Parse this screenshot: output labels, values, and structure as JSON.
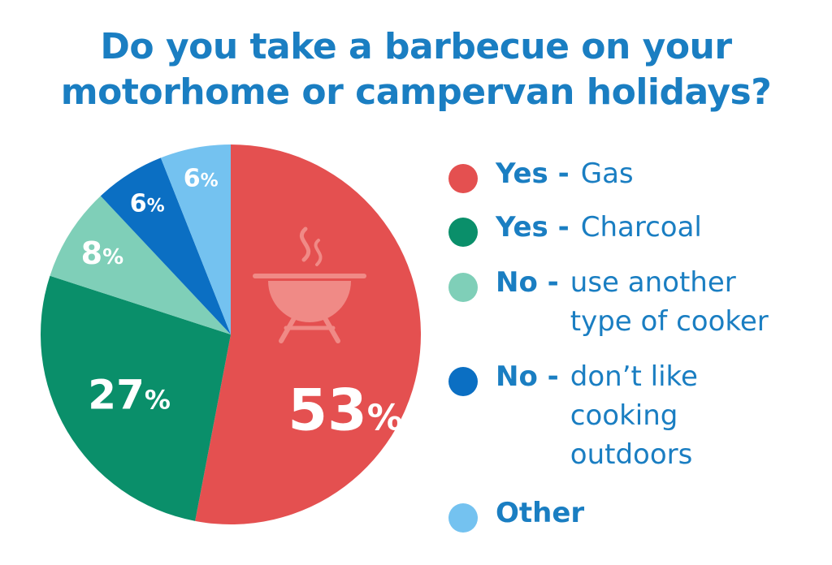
{
  "title": {
    "line1": "Do you take a barbecue on your",
    "line2": "motorhome or campervan holidays?"
  },
  "colors": {
    "title": "#1a7ec2",
    "gas": "#e45050",
    "charcoal": "#0a8f6a",
    "another_cooker": "#7fcfb8",
    "dont_like": "#0b6fc3",
    "other": "#74c2f0"
  },
  "icon": "barbecue-grill-icon",
  "chart_data": {
    "type": "pie",
    "slices": [
      {
        "label": "Yes - Gas",
        "value": 53,
        "display": "53",
        "color": "#e45050"
      },
      {
        "label": "Yes - Charcoal",
        "value": 27,
        "display": "27",
        "color": "#0a8f6a"
      },
      {
        "label": "No - use another type of cooker",
        "value": 8,
        "display": "8",
        "color": "#7fcfb8"
      },
      {
        "label": "No - don’t like cooking outdoors",
        "value": 6,
        "display": "6",
        "color": "#0b6fc3"
      },
      {
        "label": "Other",
        "value": 6,
        "display": "6",
        "color": "#74c2f0"
      }
    ],
    "unit": "%",
    "legend_position": "right"
  },
  "legend": [
    {
      "key": "Yes -",
      "desc": [
        "Gas"
      ]
    },
    {
      "key": "Yes -",
      "desc": [
        "Charcoal"
      ]
    },
    {
      "key": "No -",
      "desc": [
        "use another",
        "type of cooker"
      ]
    },
    {
      "key": "No -",
      "desc": [
        "don’t like",
        "cooking",
        "outdoors"
      ]
    },
    {
      "key": "Other",
      "desc": []
    }
  ]
}
